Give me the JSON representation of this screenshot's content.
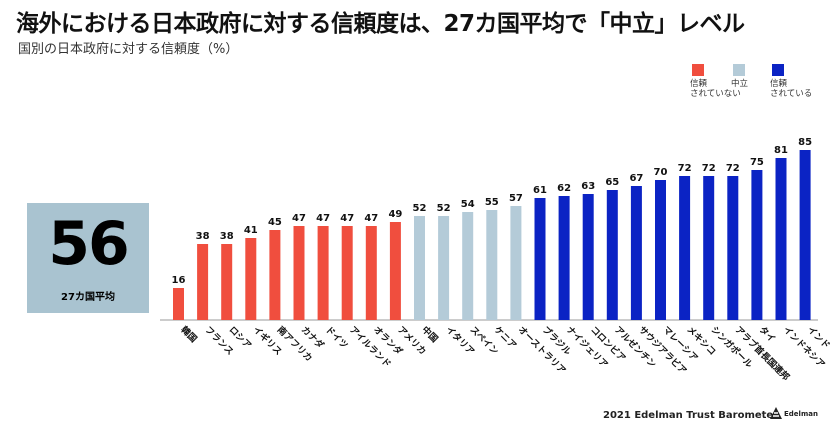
{
  "title": "海外における日本政府に対する信頼度は、27カ国平均で「中立」レベル",
  "subtitle": "国別の日本政府に対する信頼度（%）",
  "legend": {
    "distrust": {
      "line1": "信頼",
      "line2": "されていない",
      "color": "#f04e3e"
    },
    "neutral": {
      "line1": "中立",
      "color": "#b4cbd8"
    },
    "trust": {
      "line1": "信頼",
      "line2": "されている",
      "color": "#0b23c4"
    }
  },
  "average": {
    "value": "56",
    "label": "27カ国平均"
  },
  "footer": {
    "source": "2021 Edelman Trust Barometer",
    "logo_text": "Edelman"
  },
  "chart_data": {
    "type": "bar",
    "categories": [
      "韓国",
      "フランス",
      "ロシア",
      "イギリス",
      "南アフリカ",
      "カナダ",
      "ドイツ",
      "アイルランド",
      "オランダ",
      "アメリカ",
      "中国",
      "イタリア",
      "スペイン",
      "ケニア",
      "オーストラリア",
      "ブラジル",
      "ナイジェリア",
      "コロンビア",
      "アルゼンチン",
      "サウジアラビア",
      "マレーシア",
      "メキシコ",
      "シンガポール",
      "アラブ首長国連邦",
      "タイ",
      "インドネシア",
      "インド"
    ],
    "values": [
      16,
      38,
      38,
      41,
      45,
      47,
      47,
      47,
      47,
      49,
      52,
      52,
      54,
      55,
      57,
      61,
      62,
      63,
      65,
      67,
      70,
      72,
      72,
      72,
      75,
      81,
      85
    ],
    "categories_by_group": {
      "distrust": [
        "韓国",
        "フランス",
        "ロシア",
        "イギリス",
        "南アフリカ",
        "カナダ",
        "ドイツ",
        "アイルランド",
        "オランダ",
        "アメリカ"
      ],
      "neutral": [
        "中国",
        "イタリア",
        "スペイン",
        "ケニア",
        "オーストラリア"
      ],
      "trust": [
        "ブラジル",
        "ナイジェリア",
        "コロンビア",
        "アルゼンチン",
        "サウジアラビア",
        "マレーシア",
        "メキシコ",
        "シンガポール",
        "アラブ首長国連邦",
        "タイ",
        "インドネシア",
        "インド"
      ]
    },
    "ylim": [
      0,
      100
    ],
    "grid": false,
    "legend_position": "top-right",
    "data_labels": true
  }
}
